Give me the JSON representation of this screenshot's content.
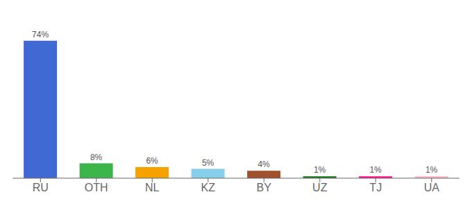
{
  "chart_data": {
    "type": "bar",
    "categories": [
      "RU",
      "OTH",
      "NL",
      "KZ",
      "BY",
      "UZ",
      "TJ",
      "UA"
    ],
    "values": [
      74,
      8,
      6,
      5,
      4,
      1,
      1,
      1
    ],
    "value_labels": [
      "74%",
      "8%",
      "6%",
      "5%",
      "4%",
      "1%",
      "1%",
      "1%"
    ],
    "colors": [
      "#4169d4",
      "#3cb54a",
      "#f5a200",
      "#87ceeb",
      "#a0522d",
      "#1a7a1a",
      "#ff1493",
      "#ffb6c1"
    ],
    "ylim": [
      0,
      84
    ],
    "data_labels": true,
    "tick_labels": "x",
    "grid": false
  }
}
